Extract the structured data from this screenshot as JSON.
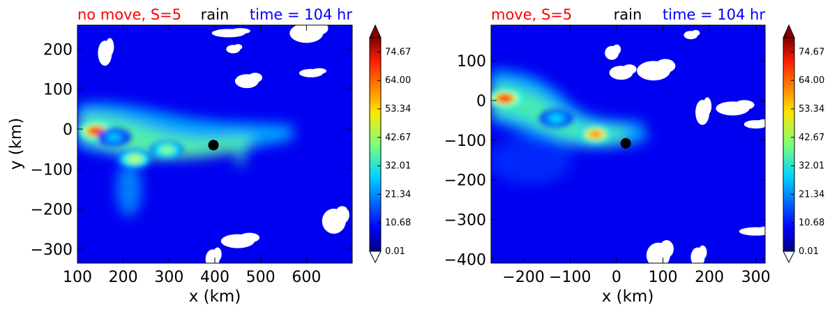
{
  "chart_data": [
    {
      "type": "heatmap",
      "title_left": "no move, S=5",
      "title_center": "rain",
      "title_right": "time = 104 hr",
      "title_left_color": "#ff0000",
      "title_center_color": "#000000",
      "title_right_color": "#0000ff",
      "xlabel": "x (km)",
      "ylabel": "y (km)",
      "xlim": [
        100,
        700
      ],
      "ylim": [
        -335,
        260
      ],
      "xticks": [
        100,
        200,
        300,
        400,
        500,
        600
      ],
      "yticks": [
        200,
        100,
        0,
        -100,
        -200,
        -300
      ],
      "marker": {
        "x": 397,
        "y": -40
      },
      "colorbar": {
        "ticks": [
          "74.67",
          "64.00",
          "53.34",
          "42.67",
          "32.01",
          "21.34",
          "10.68",
          "0.01"
        ],
        "min": 0.01,
        "max": 80,
        "extend": "both"
      },
      "rain_features": [
        {
          "x": 140,
          "y": -5,
          "peak": 76
        },
        {
          "x": 225,
          "y": -75,
          "peak": 50
        },
        {
          "x": 295,
          "y": -52,
          "peak": 45
        },
        {
          "x": 180,
          "y": -20,
          "peak": 28
        }
      ],
      "no_rain_regions": [
        {
          "x": 440,
          "y": 200
        },
        {
          "x": 470,
          "y": 120
        },
        {
          "x": 600,
          "y": 240
        },
        {
          "x": 160,
          "y": 190
        },
        {
          "x": 610,
          "y": 140
        },
        {
          "x": 450,
          "y": -280
        },
        {
          "x": 395,
          "y": -325
        },
        {
          "x": 660,
          "y": -230
        },
        {
          "x": 430,
          "y": 240
        }
      ]
    },
    {
      "type": "heatmap",
      "title_left": "move, S=5",
      "title_center": "rain",
      "title_right": "time = 104 hr",
      "title_left_color": "#ff0000",
      "title_center_color": "#000000",
      "title_right_color": "#0000ff",
      "xlabel": "x (km)",
      "ylabel": "",
      "xlim": [
        -270,
        320
      ],
      "ylim": [
        -410,
        190
      ],
      "xticks": [
        -200,
        -100,
        0,
        100,
        200,
        300
      ],
      "yticks": [
        100,
        0,
        -100,
        -200,
        -300,
        -400
      ],
      "marker": {
        "x": 20,
        "y": -108
      },
      "colorbar": {
        "ticks": [
          "74.67",
          "64.00",
          "53.34",
          "42.67",
          "32.01",
          "21.34",
          "10.68",
          "0.01"
        ],
        "min": 0.01,
        "max": 80,
        "extend": "both"
      },
      "rain_features": [
        {
          "x": -240,
          "y": 5,
          "peak": 76
        },
        {
          "x": -45,
          "y": -85,
          "peak": 66
        },
        {
          "x": -130,
          "y": -45,
          "peak": 30
        }
      ],
      "no_rain_regions": [
        {
          "x": 160,
          "y": 165
        },
        {
          "x": 10,
          "y": 70
        },
        {
          "x": 80,
          "y": 75
        },
        {
          "x": 185,
          "y": -30
        },
        {
          "x": 300,
          "y": -60
        },
        {
          "x": 250,
          "y": -20
        },
        {
          "x": 175,
          "y": -395
        },
        {
          "x": 90,
          "y": -390
        },
        {
          "x": 300,
          "y": -330
        },
        {
          "x": -10,
          "y": 120
        }
      ]
    }
  ]
}
